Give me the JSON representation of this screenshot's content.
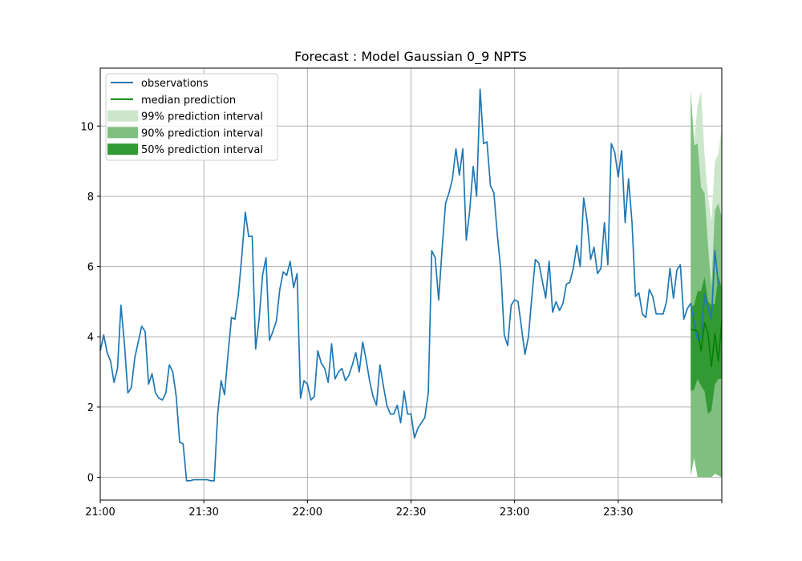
{
  "chart_data": {
    "type": "line",
    "title": "Forecast : Model Gaussian 0_9 NPTS",
    "xlabel": "",
    "ylabel": "",
    "x_ticks": [
      "21:00",
      "21:30",
      "22:00",
      "22:30",
      "23:00",
      "23:30"
    ],
    "y_ticks": [
      "0",
      "2",
      "4",
      "6",
      "8",
      "10"
    ],
    "ylim": [
      -0.65,
      11.65
    ],
    "xlim_minutes": [
      0,
      180
    ],
    "grid": true,
    "legend_position": "upper-left",
    "colors": {
      "observations": "#1f77b4",
      "median": "#008000",
      "band99": "#cce6cc",
      "band90": "#7fbf7f",
      "band50": "#339933"
    },
    "series": [
      {
        "name": "observations",
        "minutes_from_2100": [
          0,
          1,
          2,
          3,
          4,
          5,
          6,
          7,
          8,
          9,
          10,
          11,
          12,
          13,
          14,
          15,
          16,
          17,
          18,
          19,
          20,
          21,
          22,
          23,
          24,
          25,
          26,
          27,
          28,
          29,
          30,
          31,
          32,
          33,
          34,
          35,
          36,
          37,
          38,
          39,
          40,
          41,
          42,
          43,
          44,
          45,
          46,
          47,
          48,
          49,
          50,
          51,
          52,
          53,
          54,
          55,
          56,
          57,
          58,
          59,
          60,
          61,
          62,
          63,
          64,
          65,
          66,
          67,
          68,
          69,
          70,
          71,
          72,
          73,
          74,
          75,
          76,
          77,
          78,
          79,
          80,
          81,
          82,
          83,
          84,
          85,
          86,
          87,
          88,
          89,
          90,
          91,
          92,
          93,
          94,
          95,
          96,
          97,
          98,
          99,
          100,
          101,
          102,
          103,
          104,
          105,
          106,
          107,
          108,
          109,
          110,
          111,
          112,
          113,
          114,
          115,
          116,
          117,
          118,
          119,
          120,
          121,
          122,
          123,
          124,
          125,
          126,
          127,
          128,
          129,
          130,
          131,
          132,
          133,
          134,
          135,
          136,
          137,
          138,
          139,
          140,
          141,
          142,
          143,
          144,
          145,
          146,
          147,
          148,
          149,
          150,
          151,
          152,
          153,
          154,
          155,
          156,
          157,
          158,
          159,
          160,
          161,
          162,
          163,
          164,
          165,
          166,
          167,
          168,
          169,
          170,
          171,
          172,
          173,
          174,
          175,
          176,
          177,
          178,
          179,
          180
        ],
        "values": [
          3.6,
          4.05,
          3.55,
          3.3,
          2.7,
          3.1,
          4.9,
          3.8,
          2.4,
          2.55,
          3.4,
          3.85,
          4.3,
          4.15,
          2.65,
          2.95,
          2.4,
          2.25,
          2.2,
          2.4,
          3.2,
          3.0,
          2.3,
          1.0,
          0.95,
          -0.1,
          -0.1,
          -0.07,
          -0.07,
          -0.07,
          -0.07,
          -0.07,
          -0.1,
          -0.1,
          1.8,
          2.75,
          2.35,
          3.5,
          4.55,
          4.5,
          5.2,
          6.3,
          7.55,
          6.85,
          6.87,
          3.65,
          4.5,
          5.75,
          6.25,
          3.9,
          4.15,
          4.45,
          5.35,
          5.85,
          5.75,
          6.15,
          5.4,
          5.8,
          2.25,
          2.75,
          2.65,
          2.2,
          2.3,
          3.6,
          3.25,
          3.1,
          2.7,
          3.8,
          2.8,
          3.0,
          3.1,
          2.75,
          2.9,
          3.2,
          3.55,
          3.0,
          3.85,
          3.35,
          2.75,
          2.3,
          2.05,
          3.2,
          2.6,
          2.05,
          1.8,
          1.8,
          2.05,
          1.55,
          2.45,
          1.8,
          1.8,
          1.12,
          1.4,
          1.55,
          1.7,
          2.4,
          6.45,
          6.25,
          5.05,
          6.5,
          7.8,
          8.1,
          8.5,
          9.35,
          8.6,
          9.35,
          6.75,
          7.6,
          8.85,
          8.0,
          11.05,
          9.5,
          9.55,
          8.3,
          8.1,
          6.9,
          5.9,
          4.05,
          3.75,
          4.9,
          5.05,
          5.0,
          4.25,
          3.5,
          4.0,
          5.15,
          6.2,
          6.1,
          5.6,
          5.1,
          6.15,
          4.7,
          5.0,
          4.75,
          4.95,
          5.5,
          5.55,
          5.95,
          6.6,
          6.0,
          7.95,
          7.3,
          6.2,
          6.55,
          5.8,
          5.95,
          7.25,
          6.05,
          9.5,
          9.25,
          8.55,
          9.3,
          7.25,
          8.5,
          7.25,
          5.15,
          5.25,
          4.65,
          4.55,
          5.35,
          5.15,
          4.65,
          4.65,
          4.65,
          5.0,
          5.95,
          5.1,
          5.9,
          6.05,
          4.5,
          4.8,
          4.95,
          4.4,
          3.9,
          4.0,
          5.2,
          4.85,
          4.5,
          6.45,
          5.5
        ]
      },
      {
        "name": "median prediction",
        "minutes_from_2100": [
          171,
          172,
          173,
          174,
          175,
          176,
          177,
          178,
          179,
          180
        ],
        "values": [
          4.2,
          4.2,
          4.15,
          3.6,
          4.4,
          4.1,
          3.15,
          4.1,
          3.3,
          4.45
        ]
      }
    ],
    "intervals": [
      {
        "name": "99% prediction interval",
        "minutes_from_2100": [
          171,
          172,
          173,
          174,
          175,
          176,
          177,
          178,
          179,
          180
        ],
        "lower": [
          0.0,
          0.55,
          0.0,
          0.0,
          0.0,
          0.0,
          0.0,
          0.1,
          0.05,
          0.0
        ],
        "upper": [
          11.0,
          9.6,
          10.6,
          11.0,
          9.2,
          8.0,
          7.3,
          9.0,
          9.2,
          10.0
        ]
      },
      {
        "name": "90% prediction interval",
        "minutes_from_2100": [
          171,
          172,
          173,
          174,
          175,
          176,
          177,
          178,
          179,
          180
        ],
        "lower": [
          0.05,
          0.55,
          0.0,
          0.0,
          0.0,
          0.0,
          0.0,
          0.1,
          0.05,
          0.0
        ],
        "upper": [
          11.0,
          9.45,
          9.5,
          8.25,
          8.1,
          6.6,
          5.4,
          7.6,
          7.8,
          7.4
        ]
      },
      {
        "name": "50% prediction interval",
        "minutes_from_2100": [
          171,
          172,
          173,
          174,
          175,
          176,
          177,
          178,
          179,
          180
        ],
        "lower": [
          2.45,
          2.5,
          2.8,
          2.6,
          2.45,
          1.8,
          1.9,
          2.65,
          2.8,
          2.8
        ],
        "upper": [
          4.85,
          4.9,
          5.3,
          5.3,
          5.7,
          5.0,
          4.9,
          4.95,
          5.7,
          5.4
        ]
      }
    ],
    "legend": [
      "observations",
      "median prediction",
      "99% prediction interval",
      "90% prediction interval",
      "50% prediction interval"
    ]
  }
}
